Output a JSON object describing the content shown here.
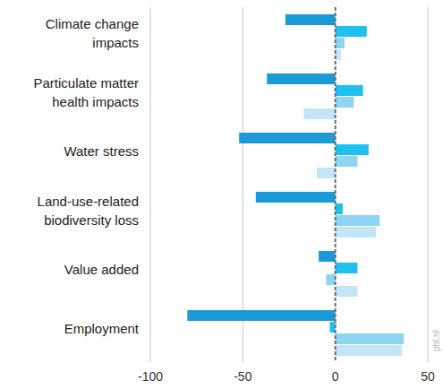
{
  "chart_data": {
    "type": "bar",
    "orientation": "horizontal",
    "categories": [
      "Climate change impacts",
      "Particulate matter health impacts",
      "Water stress",
      "Land-use-related biodiversity loss",
      "Value added",
      "Employment"
    ],
    "series": [
      {
        "color": "#1a9ad6",
        "values": [
          -27,
          -37,
          -52,
          -43,
          -9,
          -80
        ]
      },
      {
        "color": "#1ec0ee",
        "values": [
          17,
          15,
          18,
          4,
          12,
          -3
        ]
      },
      {
        "color": "#8dd5f2",
        "values": [
          5,
          10,
          12,
          24,
          -5,
          37
        ]
      },
      {
        "color": "#c2e6f7",
        "values": [
          3,
          -17,
          -10,
          22,
          12,
          36
        ]
      }
    ],
    "xlim": [
      -100,
      50
    ],
    "xticks": [
      -100,
      -50,
      0,
      50
    ],
    "grid": true,
    "annotations": [
      "pbl.nl"
    ]
  }
}
